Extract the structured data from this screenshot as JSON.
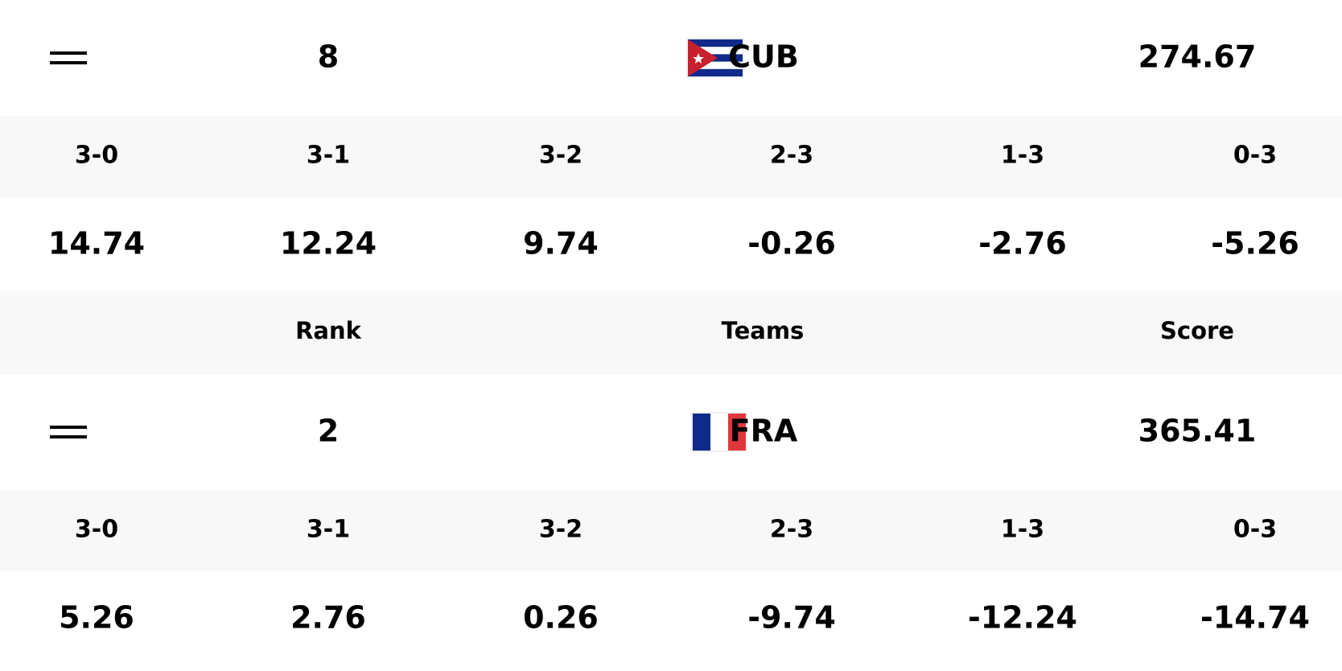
{
  "header": {
    "rank": "Rank",
    "teams": "Teams",
    "score": "Score"
  },
  "positive_color": "#5cb85c",
  "negative_color": "#d0352b",
  "teams": [
    {
      "rank": 8,
      "team": "CUB",
      "score": 274.67,
      "results": [
        {
          "label": "3-0",
          "delta": 14.74
        },
        {
          "label": "3-1",
          "delta": 12.24
        },
        {
          "label": "3-2",
          "delta": 9.74
        },
        {
          "label": "2-3",
          "delta": -0.26
        },
        {
          "label": "1-3",
          "delta": -2.76
        },
        {
          "label": "0-3",
          "delta": -5.26
        }
      ]
    },
    {
      "rank": 2,
      "team": "FRA",
      "score": 365.41,
      "results": [
        {
          "label": "3-0",
          "delta": 5.26
        },
        {
          "label": "3-1",
          "delta": 2.76
        },
        {
          "label": "3-2",
          "delta": 0.26
        },
        {
          "label": "2-3",
          "delta": -9.74
        },
        {
          "label": "1-3",
          "delta": -12.24
        },
        {
          "label": "0-3",
          "delta": -14.74
        }
      ]
    }
  ]
}
